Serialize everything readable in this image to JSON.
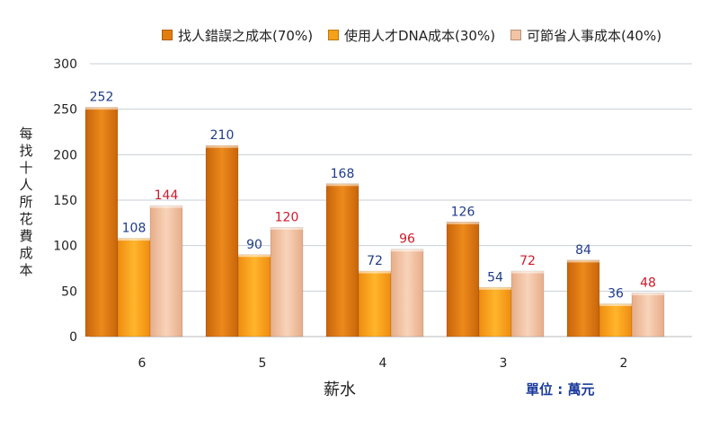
{
  "chart_data": {
    "type": "bar",
    "categories": [
      "6",
      "5",
      "4",
      "3",
      "2"
    ],
    "series": [
      {
        "name": "找人錯誤之成本(70%)",
        "values": [
          252,
          210,
          168,
          126,
          84
        ],
        "color": "#e27d10",
        "label_color": "#1f3b8a"
      },
      {
        "name": "使用人才DNA成本(30%)",
        "values": [
          108,
          90,
          72,
          54,
          36
        ],
        "color": "#f7a11a",
        "label_color": "#1f3b8a"
      },
      {
        "name": "可節省人事成本(40%)",
        "values": [
          144,
          120,
          96,
          72,
          48
        ],
        "color": "#f2c3a4",
        "label_color": "#d0192b"
      }
    ],
    "ylim": [
      0,
      300
    ],
    "yticks": [
      0,
      50,
      100,
      150,
      200,
      250,
      300
    ],
    "grid": true,
    "legend": "top",
    "xlabel": "薪水",
    "ylabel": "每找十人所花費成本",
    "unit_note": "單位 : 萬元"
  }
}
